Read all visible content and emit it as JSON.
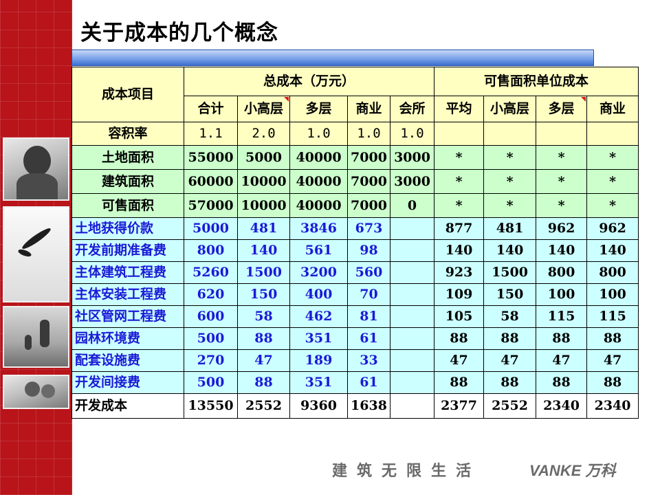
{
  "title": "关于成本的几个概念",
  "header": {
    "row_label": "成本项目",
    "total_group": "总成本（万元）",
    "unit_group": "可售面积单位成本",
    "total_cols": [
      "合计",
      "小高层",
      "多层",
      "商业",
      "会所"
    ],
    "unit_cols": [
      "平均",
      "小高层",
      "多层",
      "商业"
    ]
  },
  "plot_ratio": {
    "label": "容积率",
    "values": [
      "1.1",
      "2.0",
      "1.0",
      "1.0",
      "1.0"
    ]
  },
  "area_rows": [
    {
      "label": "土地面积",
      "total": [
        "55000",
        "5000",
        "40000",
        "7000",
        "3000"
      ],
      "unit": [
        "*",
        "*",
        "*",
        "*"
      ]
    },
    {
      "label": "建筑面积",
      "total": [
        "60000",
        "10000",
        "40000",
        "7000",
        "3000"
      ],
      "unit": [
        "*",
        "*",
        "*",
        "*"
      ]
    },
    {
      "label": "可售面积",
      "total": [
        "57000",
        "10000",
        "40000",
        "7000",
        "0"
      ],
      "unit": [
        "*",
        "*",
        "*",
        "*"
      ]
    }
  ],
  "cost_rows": [
    {
      "label": "土地获得价款",
      "total": [
        "5000",
        "481",
        "3846",
        "673",
        ""
      ],
      "unit": [
        "877",
        "481",
        "962",
        "962"
      ]
    },
    {
      "label": "开发前期准备费",
      "total": [
        "800",
        "140",
        "561",
        "98",
        ""
      ],
      "unit": [
        "140",
        "140",
        "140",
        "140"
      ]
    },
    {
      "label": "主体建筑工程费",
      "total": [
        "5260",
        "1500",
        "3200",
        "560",
        ""
      ],
      "unit": [
        "923",
        "1500",
        "800",
        "800"
      ]
    },
    {
      "label": "主体安装工程费",
      "total": [
        "620",
        "150",
        "400",
        "70",
        ""
      ],
      "unit": [
        "109",
        "150",
        "100",
        "100"
      ]
    },
    {
      "label": "社区管网工程费",
      "total": [
        "600",
        "58",
        "462",
        "81",
        ""
      ],
      "unit": [
        "105",
        "58",
        "115",
        "115"
      ]
    },
    {
      "label": "园林环境费",
      "total": [
        "500",
        "88",
        "351",
        "61",
        ""
      ],
      "unit": [
        "88",
        "88",
        "88",
        "88"
      ]
    },
    {
      "label": "配套设施费",
      "total": [
        "270",
        "47",
        "189",
        "33",
        ""
      ],
      "unit": [
        "47",
        "47",
        "47",
        "47"
      ]
    },
    {
      "label": "开发间接费",
      "total": [
        "500",
        "88",
        "351",
        "61",
        ""
      ],
      "unit": [
        "88",
        "88",
        "88",
        "88"
      ]
    }
  ],
  "total_row": {
    "label": "开发成本",
    "total": [
      "13550",
      "2552",
      "9360",
      "1638",
      ""
    ],
    "unit": [
      "2377",
      "2552",
      "2340",
      "2340"
    ]
  },
  "footer": {
    "slogan": "建筑无限生活",
    "brand": "VANKE 万科"
  },
  "colors": {
    "strip": "#b8141a",
    "header_fill": "#ffffc2",
    "area_fill": "#ccffcc",
    "cost_fill": "#ccffff",
    "cost_label_text": "#1a1ad6",
    "blue_bar": "#3b6fd0"
  }
}
